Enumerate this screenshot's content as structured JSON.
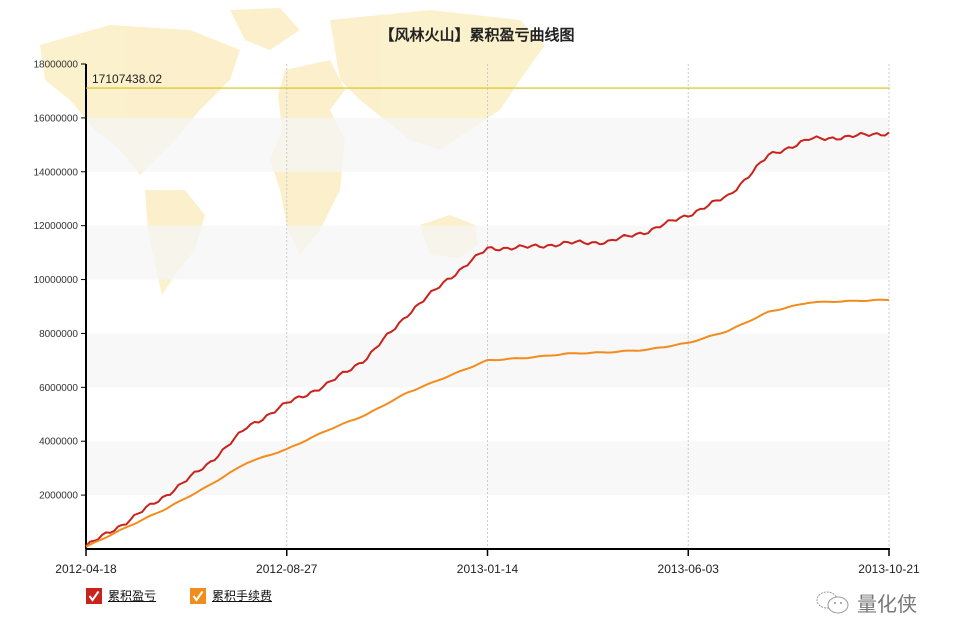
{
  "title": "【风林火山】累积盈亏曲线图",
  "reference_line": {
    "label": "17107438.02",
    "value": 17107438.02,
    "color": "#d4c21a"
  },
  "legend": [
    {
      "label": "累积盈亏",
      "color": "#c8231c",
      "checked": true,
      "icon": "checkmark-icon"
    },
    {
      "label": "累积手续费",
      "color": "#f28c1c",
      "checked": true,
      "icon": "checkmark-icon"
    }
  ],
  "watermark": {
    "text": "量化侠",
    "icon": "wechat-icon"
  },
  "colors": {
    "profit": "#c8231c",
    "fee": "#f28c1c",
    "band": "#f7f7f7",
    "map": "#fbefc6",
    "axis": "#000000"
  },
  "chart_data": {
    "type": "line",
    "title": "【风林火山】累积盈亏曲线图",
    "xlabel": "",
    "ylabel": "",
    "ylim": [
      0,
      18000000
    ],
    "yticks": [
      2000000,
      4000000,
      6000000,
      8000000,
      10000000,
      12000000,
      14000000,
      16000000,
      18000000
    ],
    "ytick_labels": [
      "2000000",
      "4000000",
      "6000000",
      "8000000",
      "10000000",
      "12000000",
      "14000000",
      "16000000",
      "18000000"
    ],
    "xtick_labels": [
      "2012-04-18",
      "2012-08-27",
      "2013-01-14",
      "2013-06-03",
      "2013-10-21"
    ],
    "grid": {
      "horizontal_bands": true,
      "vertical_dashed": true
    },
    "legend_position": "bottom-left",
    "annotations": [
      {
        "type": "hline",
        "value": 17107438.02,
        "label": "17107438.02"
      }
    ],
    "x": [
      0,
      0.05,
      0.1,
      0.15,
      0.2,
      0.25,
      0.3,
      0.35,
      0.4,
      0.45,
      0.5,
      0.55,
      0.6,
      0.65,
      0.7,
      0.75,
      0.8,
      0.85,
      0.9,
      0.95,
      1.0
    ],
    "series": [
      {
        "name": "累积盈亏",
        "color": "#c8231c",
        "values": [
          100000,
          1000000,
          2000000,
          3100000,
          4500000,
          5400000,
          6100000,
          7100000,
          8700000,
          10000000,
          11150000,
          11200000,
          11350000,
          11400000,
          11800000,
          12400000,
          13100000,
          14600000,
          15200000,
          15300000,
          15450000
        ]
      },
      {
        "name": "累积手续费",
        "color": "#f28c1c",
        "values": [
          80000,
          800000,
          1500000,
          2300000,
          3200000,
          3700000,
          4400000,
          5000000,
          5800000,
          6400000,
          7000000,
          7100000,
          7250000,
          7300000,
          7400000,
          7650000,
          8100000,
          8800000,
          9150000,
          9200000,
          9250000
        ]
      }
    ]
  }
}
